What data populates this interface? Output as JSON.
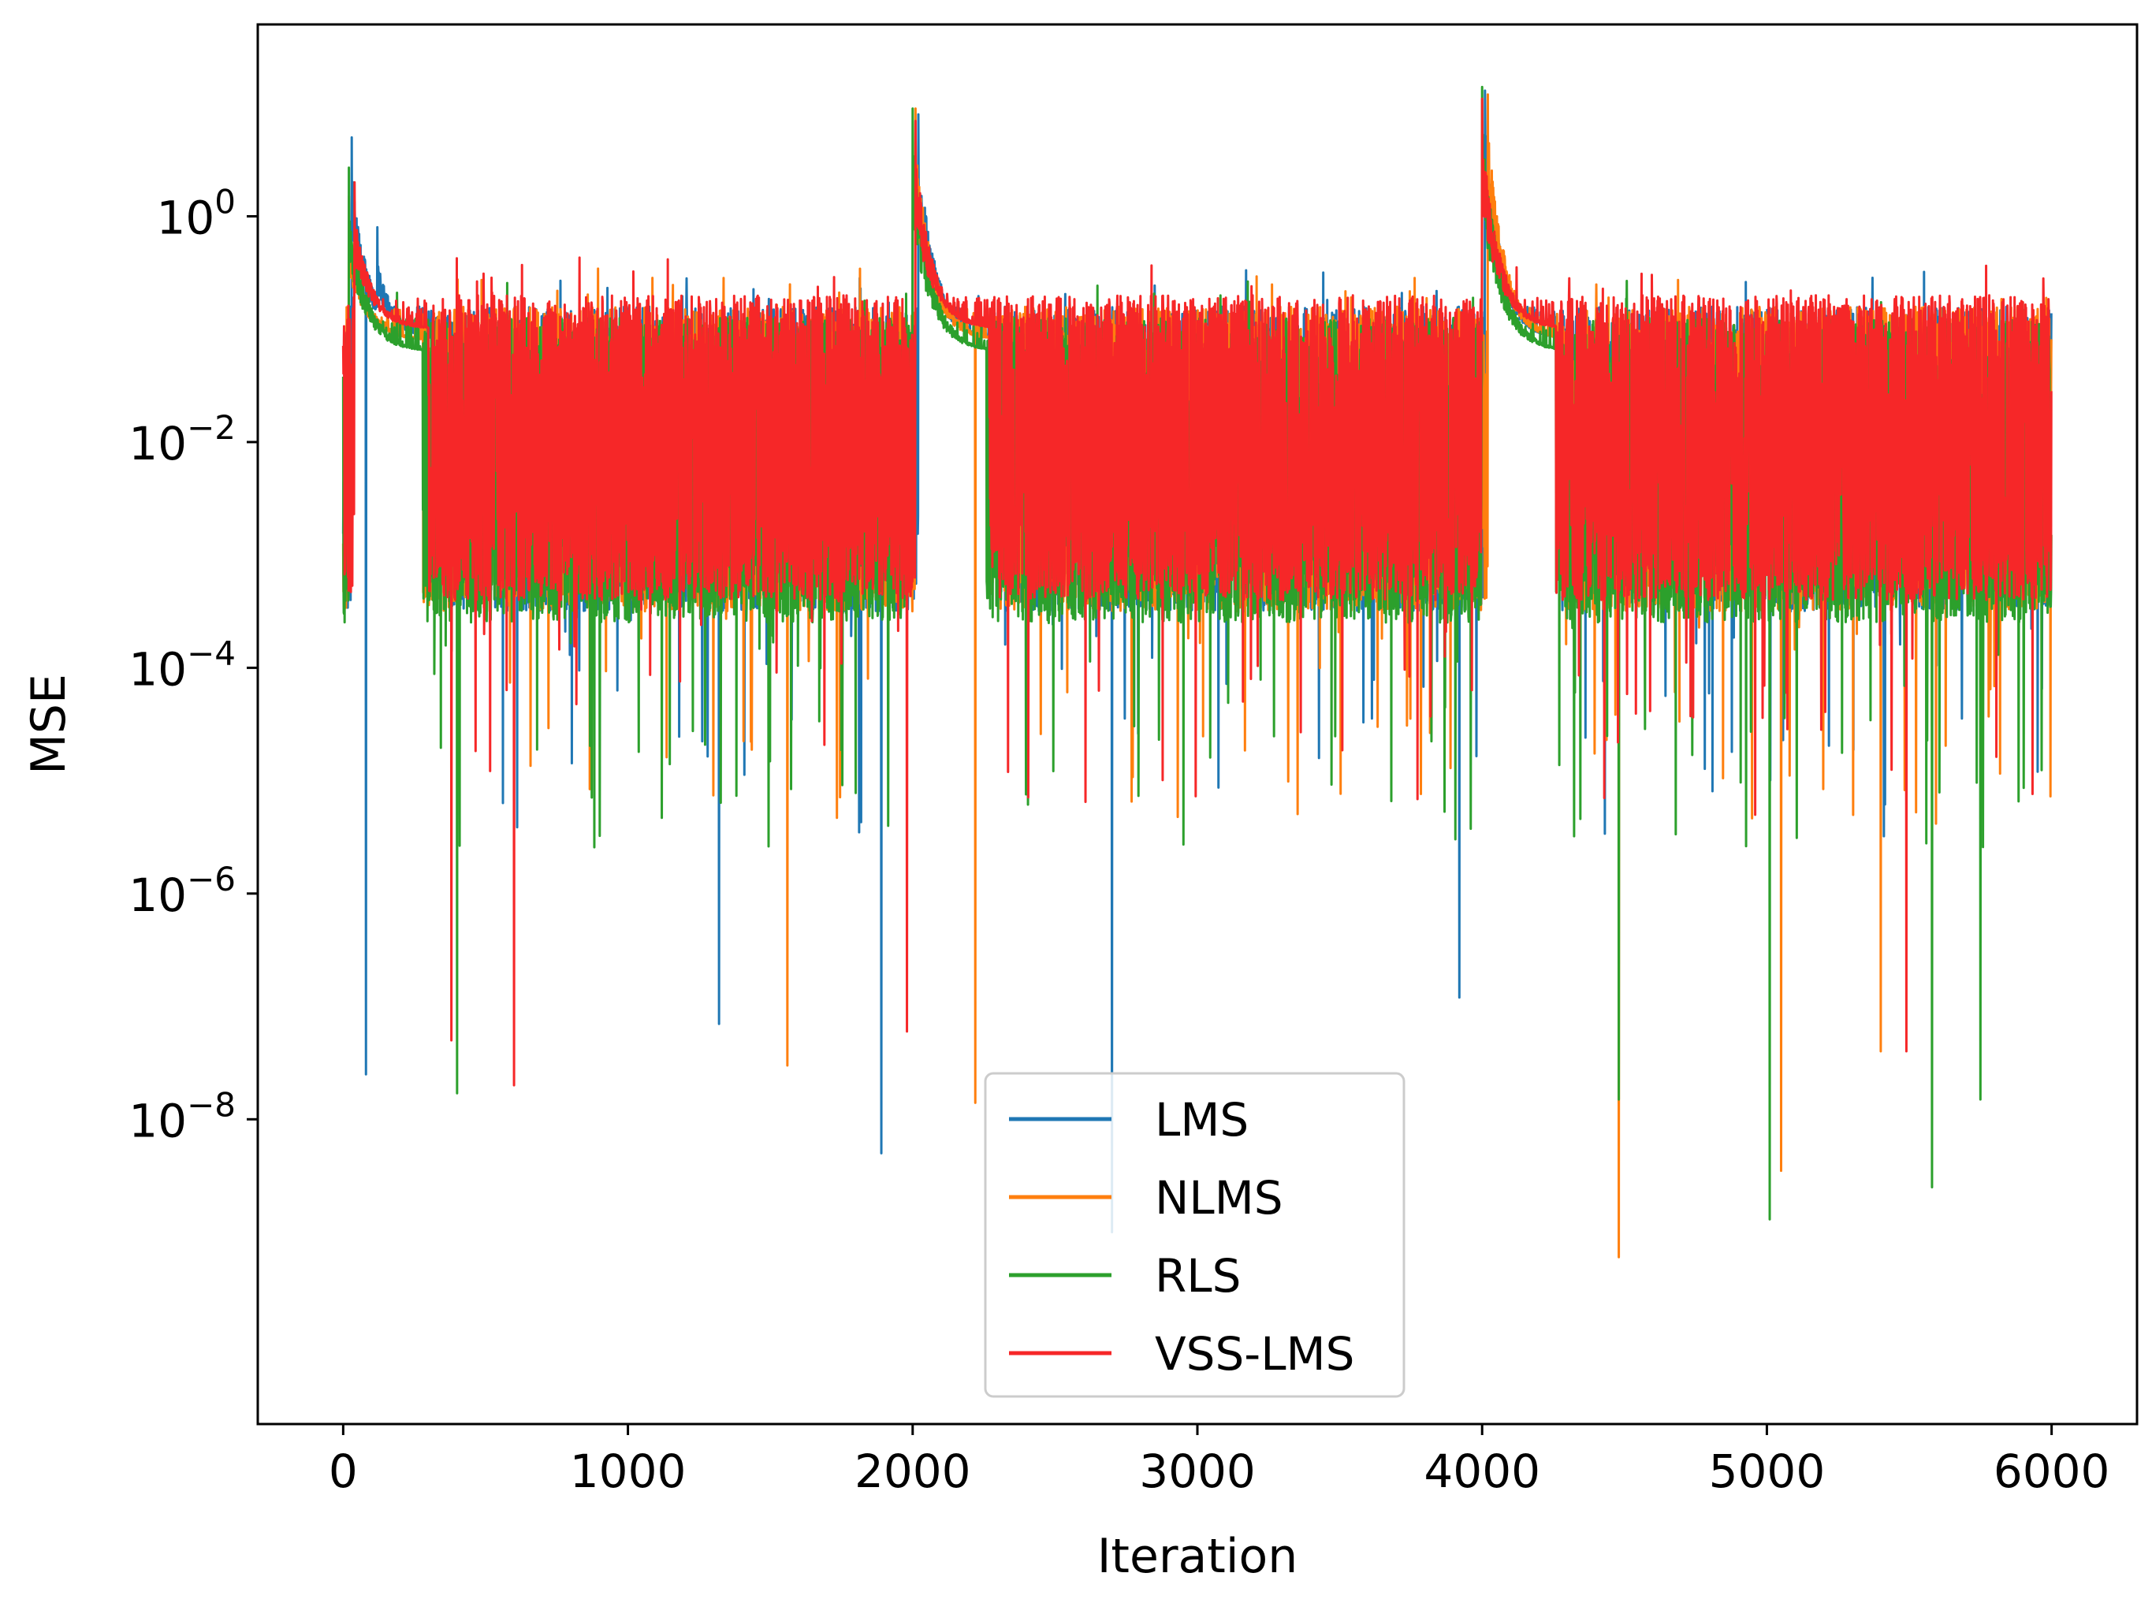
{
  "chart_data": {
    "type": "line",
    "xlabel": "Iteration",
    "ylabel": "MSE",
    "xlim": [
      -300,
      6300
    ],
    "ylim_log10": [
      -10.7,
      1.7
    ],
    "yscale": "log",
    "grid": false,
    "legend_position": "lower center",
    "n_iterations": 6000,
    "x_ticks": [
      0,
      1000,
      2000,
      3000,
      4000,
      5000,
      6000
    ],
    "x_tick_labels": [
      "0",
      "1000",
      "2000",
      "3000",
      "4000",
      "5000",
      "6000"
    ],
    "y_ticks_log10": [
      0,
      -2,
      -4,
      -6,
      -8
    ],
    "y_tick_labels": [
      {
        "base": "10",
        "exp": "0"
      },
      {
        "base": "10",
        "exp": "−2"
      },
      {
        "base": "10",
        "exp": "−4"
      },
      {
        "base": "10",
        "exp": "−6"
      },
      {
        "base": "10",
        "exp": "−8"
      }
    ],
    "series": [
      {
        "name": "LMS",
        "color": "#1f77b4",
        "typical_band_log10": [
          -3.5,
          -0.8
        ],
        "peaks": [
          {
            "x": 30,
            "mse": 5.0
          },
          {
            "x": 120,
            "mse": 0.8
          },
          {
            "x": 2020,
            "mse": 8.0
          },
          {
            "x": 4010,
            "mse": 13.0
          }
        ],
        "minima": [
          {
            "x": 80,
            "mse": 2.5e-08
          },
          {
            "x": 1890,
            "mse": 5e-09
          },
          {
            "x": 1320,
            "mse": 7e-08
          },
          {
            "x": 2700,
            "mse": 1e-09
          },
          {
            "x": 3920,
            "mse": 1.2e-07
          }
        ]
      },
      {
        "name": "NLMS",
        "color": "#ff7f0e",
        "typical_band_log10": [
          -3.5,
          -0.8
        ],
        "peaks": [
          {
            "x": 20,
            "mse": 1.5
          },
          {
            "x": 2010,
            "mse": 9.0
          },
          {
            "x": 4020,
            "mse": 12.0
          }
        ],
        "minima": [
          {
            "x": 1560,
            "mse": 3e-08
          },
          {
            "x": 2220,
            "mse": 1.4e-08
          },
          {
            "x": 4480,
            "mse": 6e-10
          },
          {
            "x": 5050,
            "mse": 3.5e-09
          },
          {
            "x": 5400,
            "mse": 4e-08
          }
        ]
      },
      {
        "name": "RLS",
        "color": "#2ca02c",
        "typical_band_log10": [
          -3.6,
          -0.9
        ],
        "peaks": [
          {
            "x": 20,
            "mse": 2.7
          },
          {
            "x": 2000,
            "mse": 9.0
          },
          {
            "x": 4000,
            "mse": 14.0
          }
        ],
        "minima": [
          {
            "x": 400,
            "mse": 1.7e-08
          },
          {
            "x": 4480,
            "mse": 1.5e-08
          },
          {
            "x": 5010,
            "mse": 1.3e-09
          },
          {
            "x": 5580,
            "mse": 2.5e-09
          },
          {
            "x": 5750,
            "mse": 1.5e-08
          }
        ]
      },
      {
        "name": "VSS-LMS",
        "color": "#f62728",
        "typical_band_log10": [
          -3.4,
          -0.7
        ],
        "peaks": [
          {
            "x": 40,
            "mse": 2.0
          },
          {
            "x": 2010,
            "mse": 7.0
          },
          {
            "x": 4000,
            "mse": 11.0
          }
        ],
        "minima": [
          {
            "x": 380,
            "mse": 5e-08
          },
          {
            "x": 600,
            "mse": 2e-08
          },
          {
            "x": 1980,
            "mse": 6e-08
          },
          {
            "x": 5490,
            "mse": 4e-08
          }
        ]
      }
    ]
  }
}
